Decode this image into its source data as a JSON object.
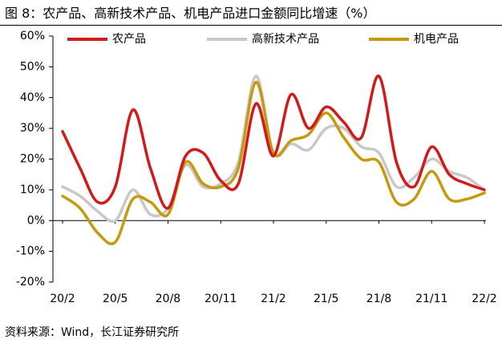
{
  "header": {
    "title": "图 8：农产品、高新技术产品、机电产品进口金额同比增速（%）"
  },
  "footer": {
    "source": "资料来源：Wind，长江证券研究所"
  },
  "chart_data": {
    "type": "line",
    "title": "",
    "xlabel": "",
    "ylabel": "",
    "ylim": [
      -20,
      60
    ],
    "yticks": [
      -20,
      -10,
      0,
      10,
      20,
      30,
      40,
      50,
      60
    ],
    "ytick_labels": [
      "-20%",
      "-10%",
      "0%",
      "10%",
      "20%",
      "30%",
      "40%",
      "50%",
      "60%"
    ],
    "x": [
      "20/2",
      "20/3",
      "20/4",
      "20/5",
      "20/6",
      "20/7",
      "20/8",
      "20/9",
      "20/10",
      "20/11",
      "20/12",
      "21/1",
      "21/2",
      "21/3",
      "21/4",
      "21/5",
      "21/6",
      "21/7",
      "21/8",
      "21/9",
      "21/10",
      "21/11",
      "21/12",
      "22/1",
      "22/2"
    ],
    "xtick_labels": [
      "20/2",
      "20/5",
      "20/8",
      "20/11",
      "21/2",
      "21/5",
      "21/8",
      "21/11",
      "22/2"
    ],
    "grid": false,
    "smooth": true,
    "legend": {
      "position": "top"
    },
    "series": [
      {
        "name": "农产品",
        "color": "#d11a1a",
        "values": [
          29,
          17,
          6,
          11,
          36,
          17,
          4,
          21,
          22,
          13,
          12,
          38,
          21,
          41,
          30,
          37,
          32,
          27,
          47,
          19,
          11,
          24,
          15,
          12,
          10
        ]
      },
      {
        "name": "高新技术产品",
        "color": "#c8c8c8",
        "values": [
          11,
          8,
          3,
          0,
          10,
          2,
          4,
          18,
          11,
          12,
          19,
          47,
          22,
          25,
          23,
          30,
          30,
          24,
          22,
          11,
          14,
          20,
          16,
          14,
          10
        ]
      },
      {
        "name": "机电产品",
        "color": "#c59a0f",
        "values": [
          8,
          4,
          -4,
          -7,
          7,
          6,
          2,
          19,
          12,
          11,
          17,
          45,
          22,
          26,
          28,
          35,
          27,
          20,
          19,
          6,
          7,
          16,
          7,
          7,
          9
        ]
      }
    ]
  }
}
